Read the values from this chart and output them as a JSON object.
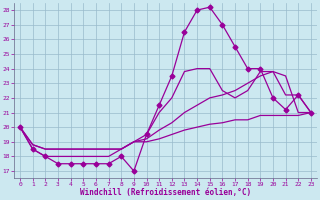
{
  "xlabel": "Windchill (Refroidissement éolien,°C)",
  "bg_color": "#cce8f0",
  "plot_bg_color": "#cce8f0",
  "line_color": "#990099",
  "grid_color": "#99bbcc",
  "axis_color": "#666688",
  "xlim": [
    -0.5,
    23.5
  ],
  "ylim": [
    16.5,
    28.5
  ],
  "yticks": [
    17,
    18,
    19,
    20,
    21,
    22,
    23,
    24,
    25,
    26,
    27,
    28
  ],
  "xticks": [
    0,
    1,
    2,
    3,
    4,
    5,
    6,
    7,
    8,
    9,
    10,
    11,
    12,
    13,
    14,
    15,
    16,
    17,
    18,
    19,
    20,
    21,
    22,
    23
  ],
  "series": [
    [
      20.0,
      18.5,
      18.0,
      17.5,
      17.5,
      17.5,
      17.5,
      17.5,
      18.0,
      17.0,
      19.5,
      21.5,
      23.5,
      26.5,
      28.0,
      28.2,
      27.0,
      25.5,
      24.0,
      24.0,
      22.0,
      21.2,
      22.2,
      21.0
    ],
    [
      20.0,
      18.5,
      18.0,
      18.0,
      18.0,
      18.0,
      18.0,
      18.0,
      18.5,
      19.0,
      19.5,
      21.0,
      22.0,
      23.8,
      24.0,
      24.0,
      22.5,
      22.0,
      22.5,
      23.8,
      23.8,
      22.2,
      22.2,
      21.0
    ],
    [
      20.0,
      18.8,
      18.5,
      18.5,
      18.5,
      18.5,
      18.5,
      18.5,
      18.5,
      19.0,
      19.2,
      19.8,
      20.3,
      21.0,
      21.5,
      22.0,
      22.2,
      22.5,
      23.0,
      23.5,
      23.8,
      23.5,
      21.0,
      21.0
    ],
    [
      20.0,
      18.8,
      18.5,
      18.5,
      18.5,
      18.5,
      18.5,
      18.5,
      18.5,
      19.0,
      19.0,
      19.2,
      19.5,
      19.8,
      20.0,
      20.2,
      20.3,
      20.5,
      20.5,
      20.8,
      20.8,
      20.8,
      20.8,
      21.0
    ]
  ],
  "marker_series": [
    0
  ],
  "marker": "D",
  "markersize": 2.5,
  "linewidth": 0.9
}
